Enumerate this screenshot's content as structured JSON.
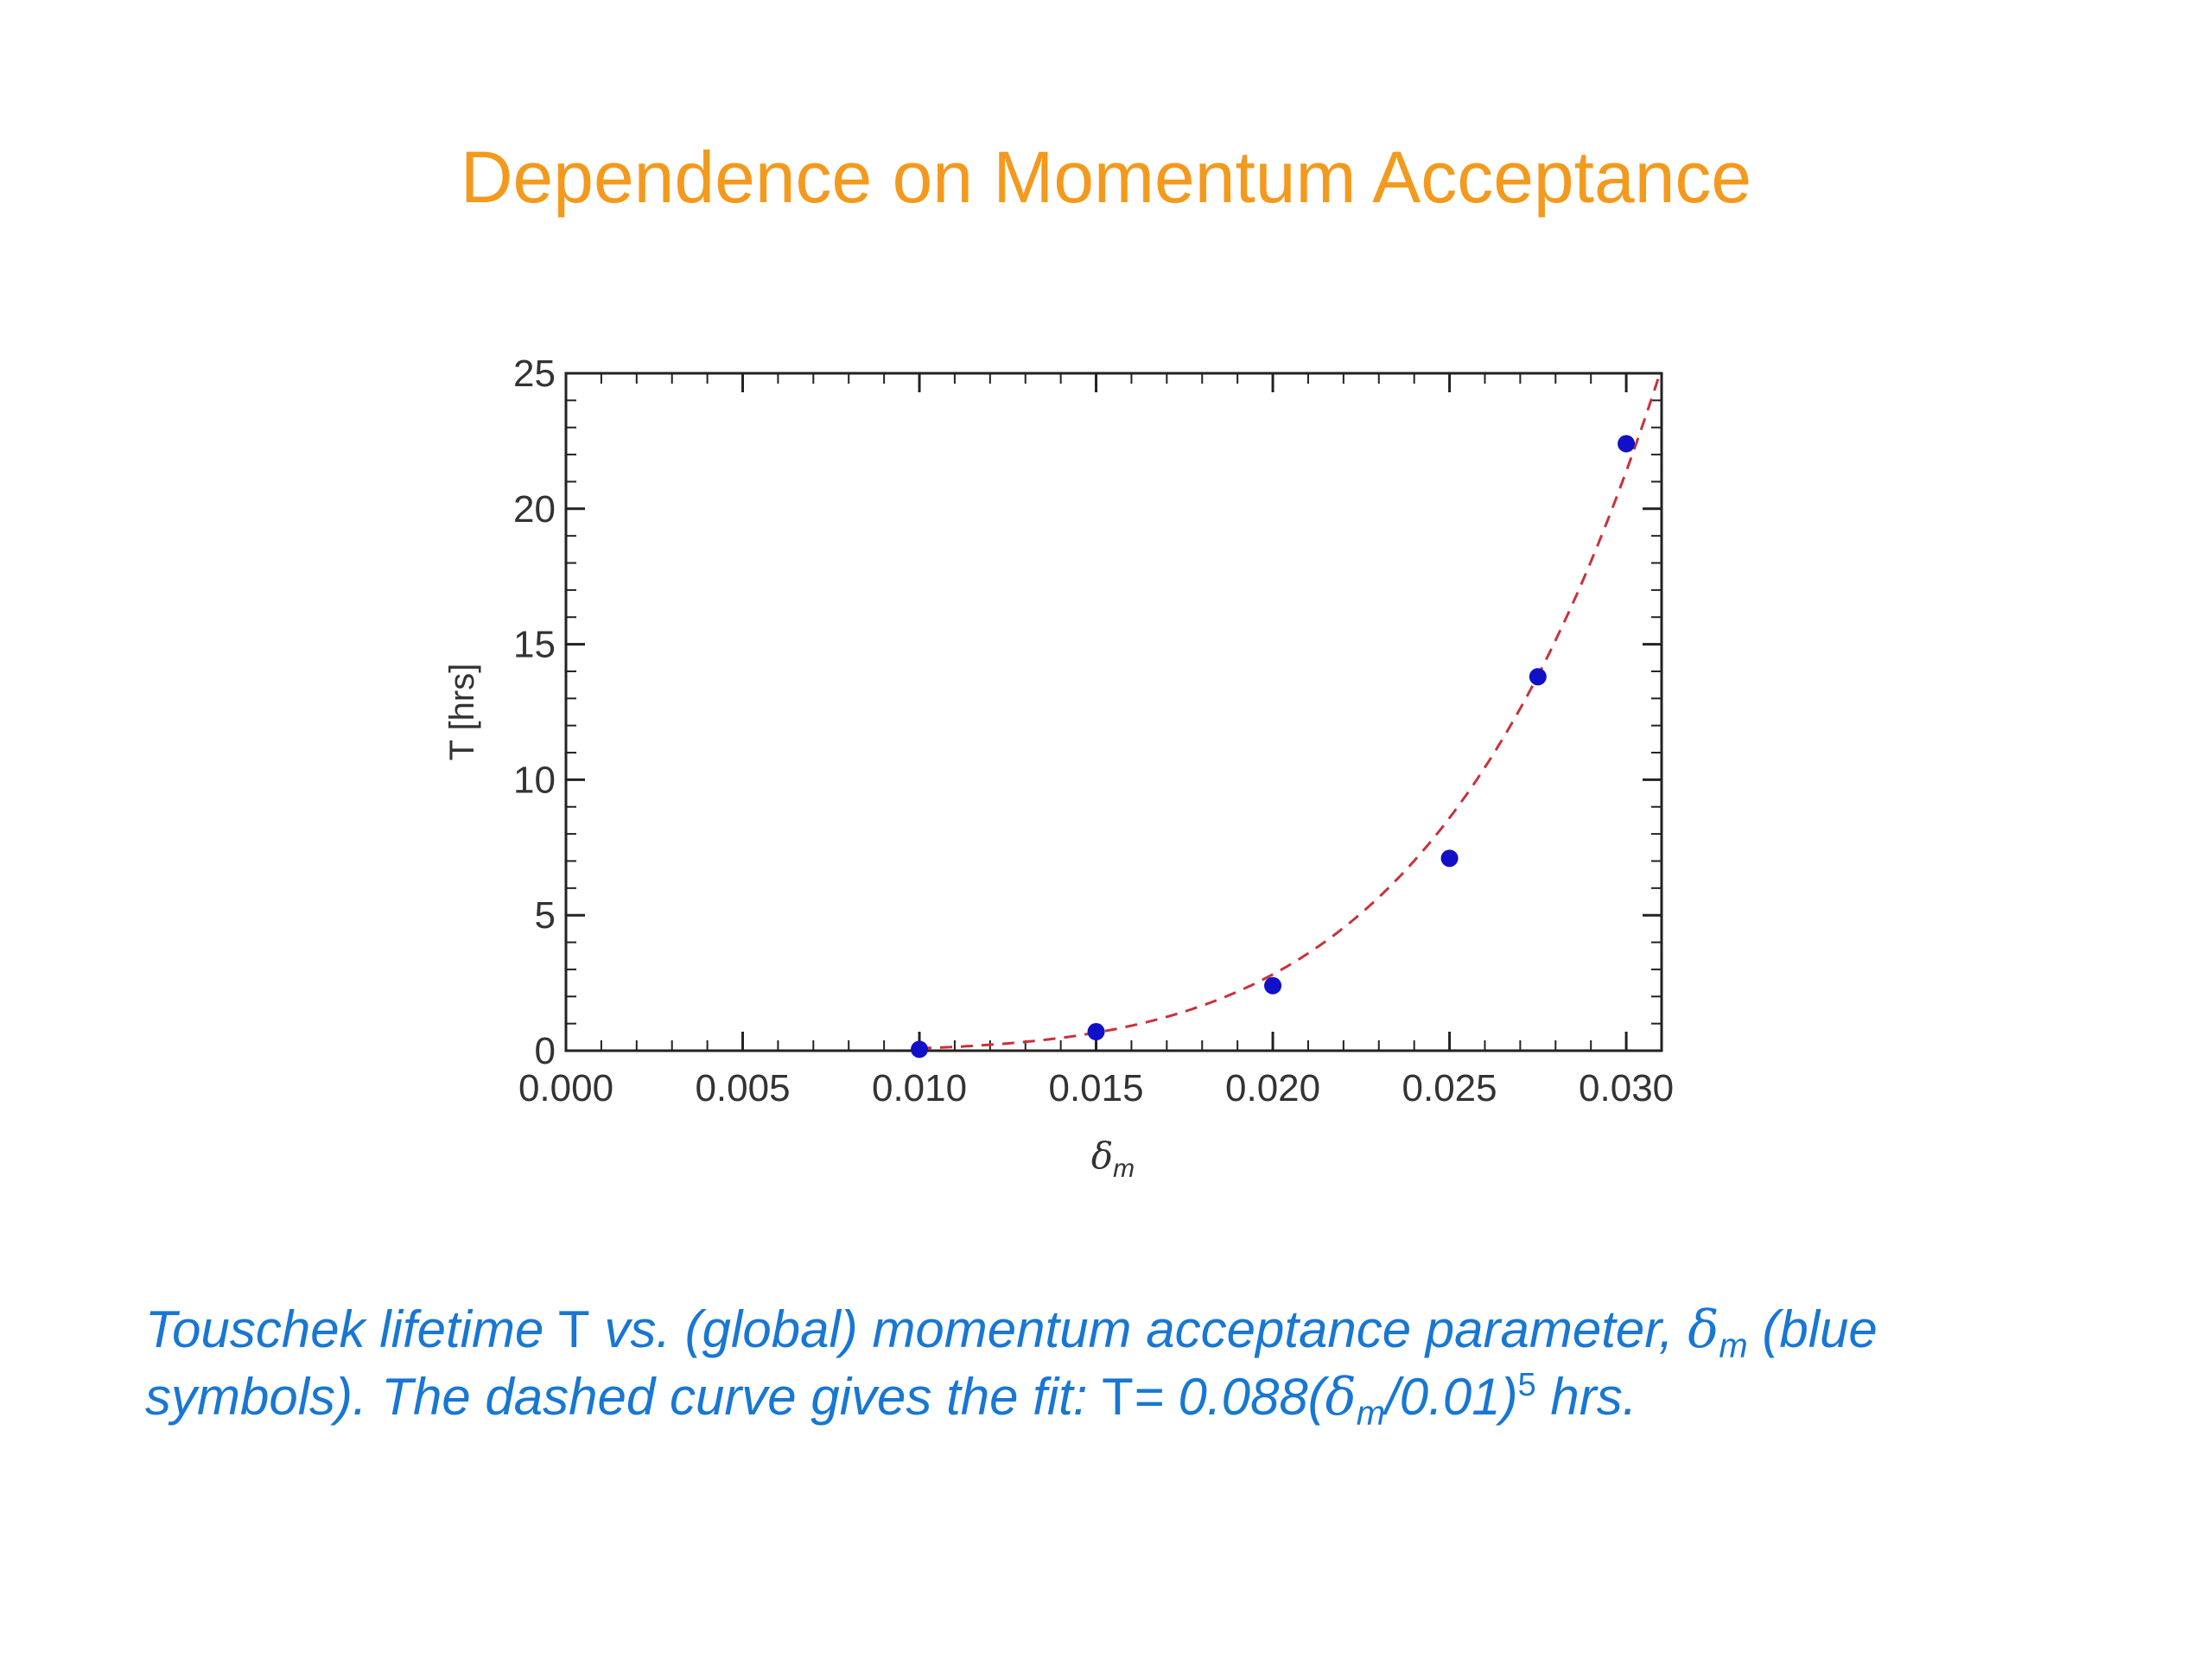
{
  "slide": {
    "title": "Dependence on Momentum Acceptance"
  },
  "caption": {
    "line1_a": "Touschek lifetime ",
    "tau_symbol": "T",
    "line1_b": " vs. (global) momentum acceptance parameter, ",
    "delta_symbol": "δ",
    "delta_sub": "m",
    "line1_c": " (blue",
    "line2_a": "symbols). The dashed curve gives the fit: ",
    "fit_tau": "T",
    "fit_eq": "= 0.088(",
    "fit_delta": "δ",
    "fit_sub": "m",
    "fit_div": "/0.01)",
    "fit_exp": "5",
    "fit_units": " hrs."
  },
  "chart_data": {
    "type": "scatter",
    "xlabel_symbol": "δ",
    "xlabel_sub": "m",
    "ylabel": "T [hrs]",
    "xlim": [
      0.0,
      0.031
    ],
    "ylim": [
      0,
      25
    ],
    "x_ticks": [
      "0.000",
      "0.005",
      "0.010",
      "0.015",
      "0.020",
      "0.025",
      "0.030"
    ],
    "x_tick_values": [
      0.0,
      0.005,
      0.01,
      0.015,
      0.02,
      0.025,
      0.03
    ],
    "y_ticks": [
      "0",
      "5",
      "10",
      "15",
      "20",
      "25"
    ],
    "y_tick_values": [
      0,
      5,
      10,
      15,
      20,
      25
    ],
    "grid": false,
    "series": [
      {
        "marker": "circle",
        "color": "#1010c8",
        "x": [
          0.01,
          0.015,
          0.02,
          0.025,
          0.0275,
          0.03
        ],
        "y": [
          0.05,
          0.7,
          2.4,
          7.1,
          13.8,
          22.4
        ]
      }
    ],
    "fit_curve": {
      "style": "dashed",
      "color": "#c8323c",
      "coefficient": 0.088,
      "reference": 0.01,
      "exponent": 5,
      "x_start": 0.01
    }
  }
}
